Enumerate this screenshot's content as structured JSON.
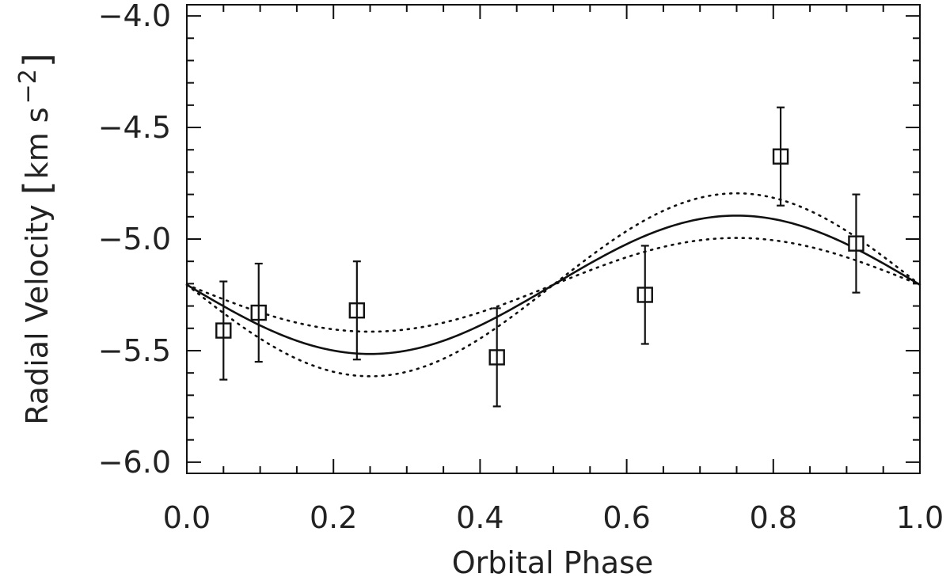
{
  "chart_data": {
    "type": "scatter",
    "xlabel": "Orbital Phase",
    "ylabel": {
      "main": "Radial Velocity",
      "unit_open": "[",
      "unit_body": "km s",
      "unit_exp": "−2",
      "unit_close": "]"
    },
    "xlim": [
      0.0,
      1.0
    ],
    "ylim": [
      -6.05,
      -3.95
    ],
    "x_ticks": [
      {
        "value": 0.0,
        "label": "0.0"
      },
      {
        "value": 0.2,
        "label": "0.2"
      },
      {
        "value": 0.4,
        "label": "0.4"
      },
      {
        "value": 0.6,
        "label": "0.6"
      },
      {
        "value": 0.8,
        "label": "0.8"
      },
      {
        "value": 1.0,
        "label": "1.0"
      }
    ],
    "y_ticks": [
      {
        "value": -4.0,
        "label": "−4.0"
      },
      {
        "value": -4.5,
        "label": "−4.5"
      },
      {
        "value": -5.0,
        "label": "−5.0"
      },
      {
        "value": -5.5,
        "label": "−5.5"
      },
      {
        "value": -6.0,
        "label": "−6.0"
      }
    ],
    "x_minor_step": 0.05,
    "y_minor_step": 0.1,
    "grid": false,
    "points": [
      {
        "x": 0.05,
        "y": -5.41,
        "yerr": 0.22
      },
      {
        "x": 0.098,
        "y": -5.33,
        "yerr": 0.22
      },
      {
        "x": 0.232,
        "y": -5.32,
        "yerr": 0.22
      },
      {
        "x": 0.423,
        "y": -5.53,
        "yerr": 0.22
      },
      {
        "x": 0.625,
        "y": -5.25,
        "yerr": 0.22
      },
      {
        "x": 0.81,
        "y": -4.63,
        "yerr": 0.22
      },
      {
        "x": 0.913,
        "y": -5.02,
        "yerr": 0.22
      }
    ],
    "fit_curve": {
      "style": "solid",
      "mean": -5.205,
      "amplitude": 0.31,
      "function": "mean - amplitude*sin(2*pi*x)"
    },
    "upper_curve": {
      "style": "dotted",
      "mean": -5.205,
      "amplitude": 0.21,
      "function": "mean - amplitude*sin(2*pi*x)"
    },
    "lower_curve": {
      "style": "dotted",
      "mean": -5.205,
      "amplitude": 0.41,
      "function": "mean - amplitude*sin(2*pi*x)"
    },
    "colors": {
      "ink": "#111111",
      "background": "#ffffff"
    }
  }
}
